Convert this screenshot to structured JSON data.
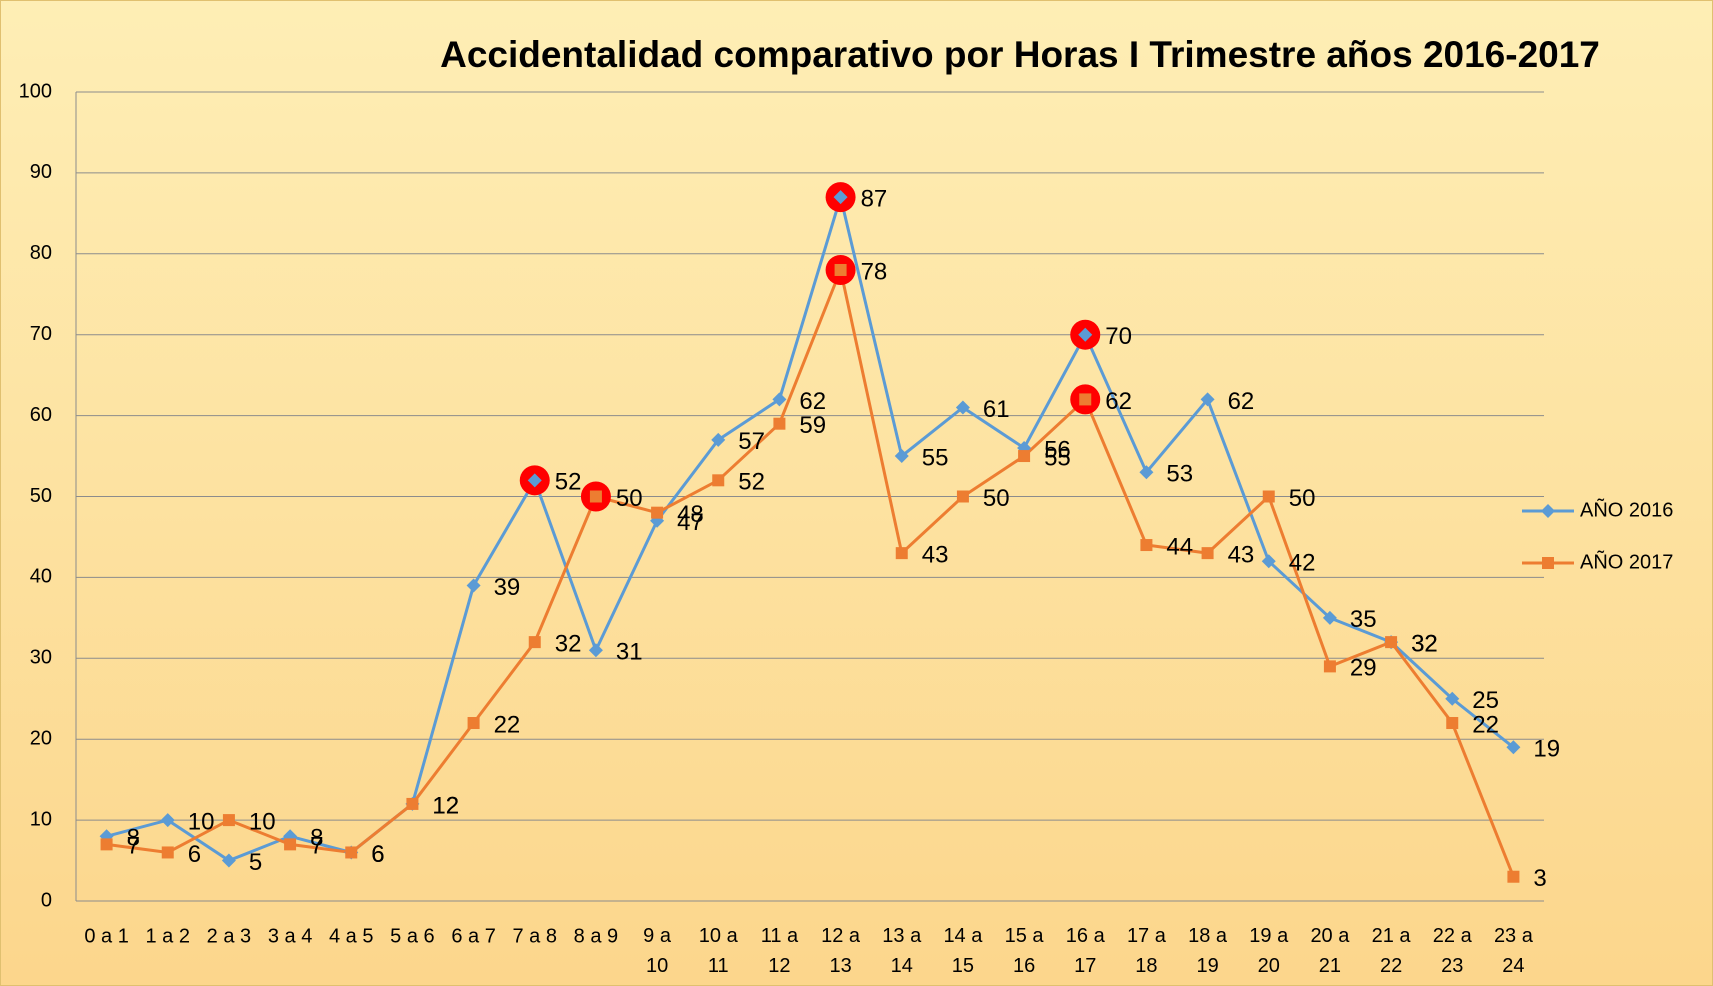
{
  "chart_data": {
    "type": "line",
    "title": "Accidentalidad comparativo por Horas I Trimestre años 2016-2017",
    "categories": [
      "0 a 1",
      "1 a 2",
      "2 a 3",
      "3 a 4",
      "4 a 5",
      "5 a 6",
      "6 a 7",
      "7 a 8",
      "8 a 9",
      "9 a 10",
      "10 a 11",
      "11 a 12",
      "12 a 13",
      "13 a 14",
      "14 a 15",
      "15 a 16",
      "16 a 17",
      "17 a 18",
      "18 a 19",
      "19 a 20",
      "20 a 21",
      "21 a 22",
      "22 a 23",
      "23 a 24"
    ],
    "series": [
      {
        "name": "AÑO 2016",
        "color": "#5b9bd5",
        "marker": "diamond",
        "values": [
          8,
          10,
          5,
          8,
          6,
          12,
          39,
          52,
          31,
          47,
          57,
          62,
          87,
          55,
          61,
          56,
          70,
          53,
          62,
          42,
          35,
          32,
          25,
          19
        ]
      },
      {
        "name": "AÑO 2017",
        "color": "#ed7d31",
        "marker": "square",
        "values": [
          7,
          6,
          10,
          7,
          6,
          12,
          22,
          32,
          50,
          48,
          52,
          59,
          78,
          43,
          50,
          55,
          62,
          44,
          43,
          50,
          29,
          32,
          22,
          3
        ]
      }
    ],
    "highlights": [
      {
        "series": 0,
        "index": 7
      },
      {
        "series": 1,
        "index": 8
      },
      {
        "series": 0,
        "index": 12
      },
      {
        "series": 1,
        "index": 12
      },
      {
        "series": 0,
        "index": 16
      },
      {
        "series": 1,
        "index": 16
      }
    ],
    "highlight_color": "#ff0000",
    "ylim": [
      0,
      100
    ],
    "yticks": [
      0,
      10,
      20,
      30,
      40,
      50,
      60,
      70,
      80,
      90,
      100
    ],
    "grid": true,
    "legend": "right"
  }
}
